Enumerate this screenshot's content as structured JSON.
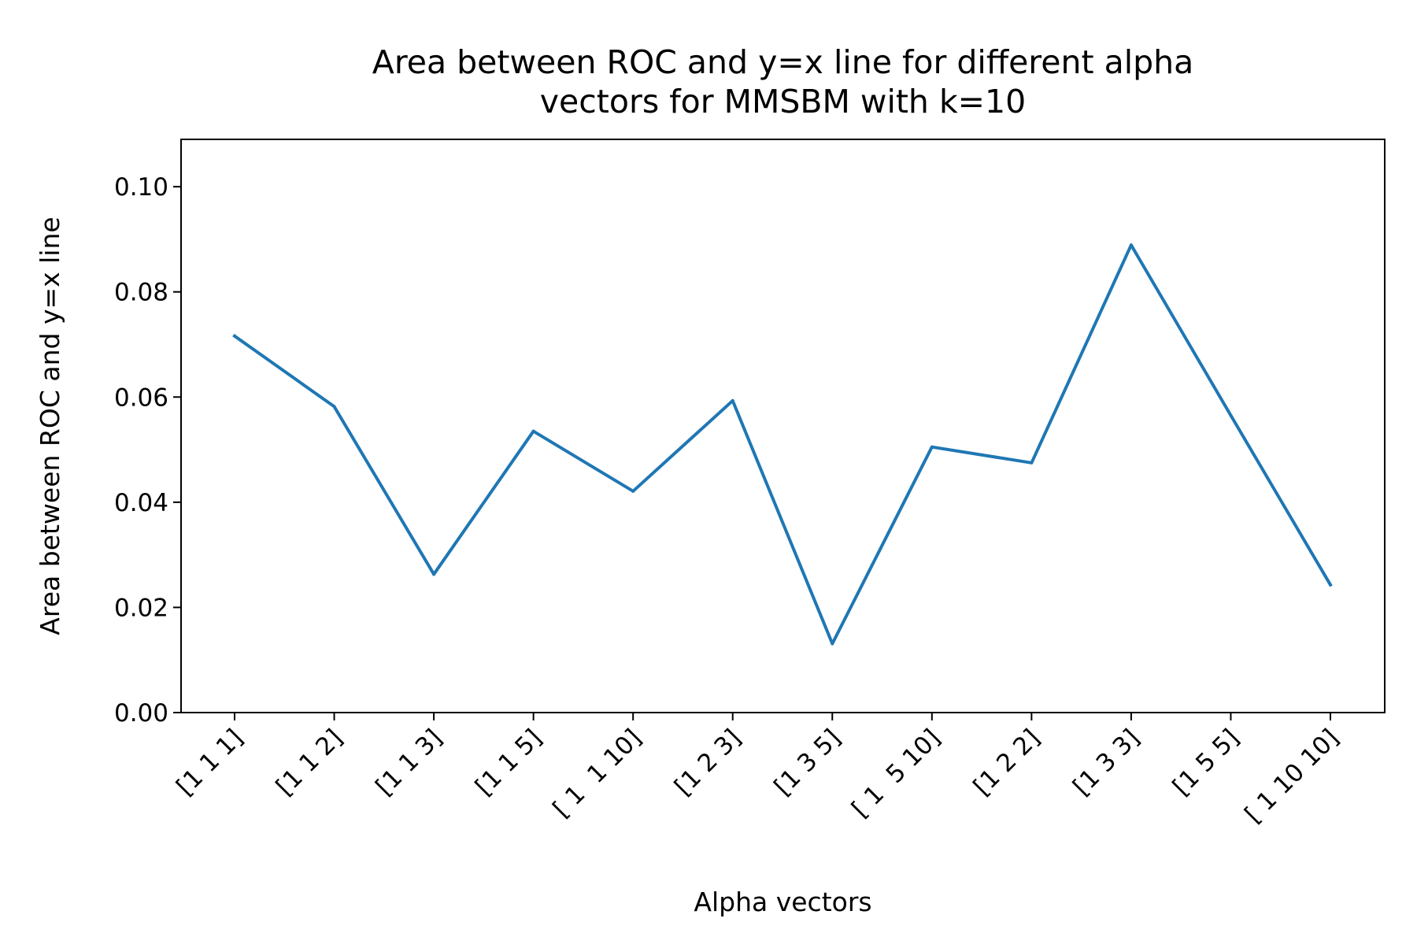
{
  "chart_data": {
    "type": "line",
    "title_lines": [
      "Area between ROC and y=x line for different alpha",
      "vectors for MMSBM with k=10"
    ],
    "xlabel": "Alpha vectors",
    "ylabel": "Area between ROC and y=x line",
    "categories": [
      "[1 1 1]",
      "[1 1 2]",
      "[1 1 3]",
      "[1 1 5]",
      "[ 1  1 10]",
      "[1 2 3]",
      "[1 3 5]",
      "[ 1  5 10]",
      "[1 2 2]",
      "[1 3 3]",
      "[1 5 5]",
      "[ 1 10 10]"
    ],
    "series": [
      {
        "color": "#1f77b4",
        "values": [
          0.0716,
          0.0582,
          0.0263,
          0.0535,
          0.0421,
          0.0593,
          0.0131,
          0.0505,
          0.0475,
          0.0889,
          0.0565,
          0.0243
        ]
      }
    ],
    "ylim": [
      0,
      0.109
    ],
    "yticks": [
      "0.00",
      "0.02",
      "0.04",
      "0.06",
      "0.08",
      "0.10"
    ],
    "grid": false,
    "legend": "none"
  }
}
